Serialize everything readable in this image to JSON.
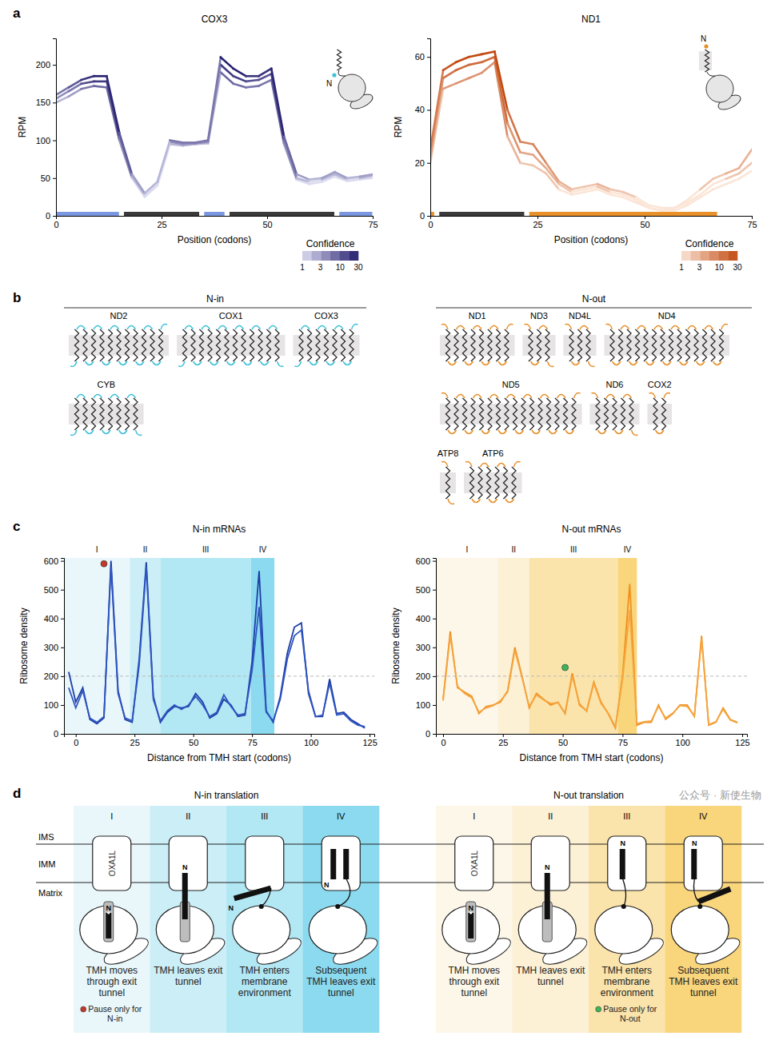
{
  "panel_labels": [
    "a",
    "b",
    "c",
    "d"
  ],
  "watermark": "公众号 · 新使生物",
  "chart_data": [
    {
      "type": "line",
      "title": "COX3",
      "x_label": "Position (codons)",
      "y_label": "RPM",
      "inset_label": "N",
      "x": [
        0,
        3,
        6,
        9,
        12,
        15,
        18,
        21,
        24,
        27,
        30,
        33,
        36,
        39,
        42,
        45,
        48,
        51,
        54,
        57,
        60,
        63,
        66,
        69,
        72,
        75
      ],
      "series": [
        {
          "values": [
            160,
            170,
            180,
            185,
            185,
            110,
            55,
            30,
            45,
            100,
            97,
            97,
            100,
            210,
            195,
            185,
            185,
            195,
            105,
            55,
            48,
            50,
            58,
            50,
            52,
            55
          ],
          "confidence": [
            6,
            10,
            20,
            30,
            25,
            10,
            3,
            2,
            2,
            6,
            6,
            6,
            6,
            30,
            28,
            20,
            20,
            25,
            8,
            3,
            2,
            3,
            3,
            2,
            3,
            3
          ]
        },
        {
          "values": [
            155,
            165,
            175,
            178,
            178,
            105,
            52,
            28,
            42,
            98,
            95,
            96,
            98,
            200,
            185,
            178,
            180,
            188,
            100,
            50,
            45,
            48,
            55,
            48,
            50,
            53
          ],
          "confidence": [
            4,
            6,
            12,
            18,
            15,
            6,
            2,
            1,
            1,
            4,
            4,
            4,
            4,
            18,
            16,
            12,
            12,
            15,
            5,
            2,
            1,
            2,
            2,
            1,
            2,
            2
          ]
        },
        {
          "values": [
            150,
            158,
            168,
            172,
            170,
            100,
            50,
            25,
            40,
            95,
            93,
            95,
            96,
            190,
            175,
            170,
            172,
            180,
            95,
            48,
            42,
            45,
            52,
            46,
            48,
            50
          ],
          "confidence": [
            2,
            3,
            6,
            8,
            7,
            3,
            1,
            1,
            1,
            2,
            2,
            2,
            2,
            8,
            7,
            6,
            6,
            7,
            3,
            1,
            1,
            1,
            1,
            1,
            1,
            1
          ]
        }
      ],
      "xlim": [
        0,
        75
      ],
      "xticks": [
        0,
        25,
        50,
        75
      ],
      "ylim": [
        0,
        235
      ],
      "yticks": [
        0,
        50,
        100,
        150,
        200
      ],
      "colorbar": {
        "label": "Confidence",
        "range": [
          1,
          30
        ],
        "ticks": [
          1,
          3,
          10,
          30
        ],
        "log": true,
        "colors": [
          "#dcdcf0",
          "#231d6e"
        ]
      },
      "segments": [
        {
          "start": 0,
          "end": 15,
          "color": "#7b97e0"
        },
        {
          "start": 16,
          "end": 34,
          "color": "#3a3a3a"
        },
        {
          "start": 35,
          "end": 40,
          "color": "#7b97e0"
        },
        {
          "start": 41,
          "end": 66,
          "color": "#3a3a3a"
        },
        {
          "start": 67,
          "end": 75,
          "color": "#7b97e0"
        }
      ]
    },
    {
      "type": "line",
      "title": "ND1",
      "x_label": "Position (codons)",
      "y_label": "RPM",
      "inset_label": "N",
      "x": [
        0,
        3,
        6,
        9,
        12,
        15,
        18,
        21,
        24,
        27,
        30,
        33,
        36,
        39,
        42,
        45,
        48,
        51,
        54,
        57,
        60,
        63,
        66,
        69,
        72,
        75
      ],
      "series": [
        {
          "values": [
            25,
            55,
            58,
            60,
            61,
            62,
            40,
            28,
            27,
            20,
            13,
            10,
            11,
            12,
            10,
            9,
            7,
            4,
            3,
            3,
            6,
            10,
            14,
            16,
            18,
            25
          ],
          "confidence": [
            10,
            25,
            30,
            30,
            28,
            30,
            12,
            8,
            8,
            5,
            3,
            2,
            2,
            3,
            2,
            2,
            1,
            1,
            1,
            1,
            1,
            2,
            2,
            3,
            3,
            5
          ]
        },
        {
          "values": [
            22,
            52,
            55,
            57,
            58,
            60,
            35,
            24,
            23,
            18,
            12,
            9,
            10,
            11,
            9,
            8,
            6,
            3,
            2,
            3,
            5,
            8,
            12,
            14,
            16,
            20
          ],
          "confidence": [
            5,
            12,
            15,
            15,
            14,
            15,
            6,
            4,
            4,
            3,
            2,
            1,
            1,
            2,
            1,
            1,
            1,
            1,
            1,
            1,
            1,
            1,
            1,
            2,
            2,
            3
          ]
        },
        {
          "values": [
            20,
            48,
            50,
            52,
            54,
            58,
            30,
            20,
            19,
            16,
            10,
            8,
            9,
            10,
            8,
            7,
            5,
            3,
            2,
            2,
            4,
            7,
            10,
            12,
            14,
            17
          ],
          "confidence": [
            2,
            5,
            6,
            6,
            6,
            7,
            3,
            2,
            2,
            2,
            1,
            1,
            1,
            1,
            1,
            1,
            1,
            1,
            1,
            1,
            1,
            1,
            1,
            1,
            1,
            2
          ]
        }
      ],
      "xlim": [
        0,
        75
      ],
      "xticks": [
        0,
        25,
        50,
        75
      ],
      "ylim": [
        0,
        67
      ],
      "yticks": [
        0,
        20,
        40,
        60
      ],
      "colorbar": {
        "label": "Confidence",
        "range": [
          1,
          30
        ],
        "ticks": [
          1,
          3,
          10,
          30
        ],
        "log": true,
        "colors": [
          "#fbe5d6",
          "#c24a12"
        ]
      },
      "segments": [
        {
          "start": 0,
          "end": 1,
          "color": "#e8902a"
        },
        {
          "start": 2,
          "end": 22,
          "color": "#3a3a3a"
        },
        {
          "start": 23,
          "end": 67,
          "color": "#e8902a"
        }
      ]
    },
    {
      "type": "line",
      "title": "N-in mRNAs",
      "x_label": "Distance from TMH start (codons)",
      "y_label": "Ribosome density",
      "x": [
        -3,
        0,
        3,
        6,
        9,
        12,
        15,
        18,
        21,
        24,
        27,
        30,
        33,
        36,
        39,
        42,
        45,
        48,
        51,
        54,
        57,
        60,
        63,
        66,
        69,
        72,
        75,
        78,
        81,
        84,
        87,
        90,
        93,
        96,
        99,
        102,
        105,
        108,
        111,
        114,
        117,
        120,
        123
      ],
      "series": [
        {
          "color": "#1d3ea6",
          "values": [
            215,
            110,
            160,
            50,
            35,
            55,
            600,
            150,
            50,
            40,
            260,
            595,
            130,
            40,
            75,
            95,
            90,
            95,
            140,
            110,
            55,
            70,
            120,
            100,
            60,
            65,
            250,
            565,
            80,
            40,
            130,
            280,
            370,
            385,
            140,
            60,
            60,
            190,
            70,
            75,
            50,
            35,
            20
          ]
        },
        {
          "color": "#2f55c0",
          "values": [
            160,
            90,
            150,
            55,
            40,
            60,
            580,
            140,
            55,
            45,
            240,
            580,
            120,
            45,
            80,
            100,
            85,
            100,
            130,
            100,
            60,
            75,
            135,
            95,
            65,
            70,
            220,
            440,
            75,
            45,
            120,
            260,
            340,
            360,
            150,
            60,
            65,
            175,
            65,
            70,
            45,
            30,
            25
          ]
        }
      ],
      "xlim": [
        -5,
        127
      ],
      "xticks": [
        0,
        25,
        50,
        75,
        100,
        125
      ],
      "ylim": [
        0,
        610
      ],
      "yticks": [
        0,
        100,
        200,
        300,
        400,
        500,
        600
      ],
      "reference_y": 200,
      "regions": [
        {
          "label": "I",
          "start": -5,
          "end": 23,
          "color": "#e9f7fb"
        },
        {
          "label": "II",
          "start": 23,
          "end": 36,
          "color": "#cbeef7"
        },
        {
          "label": "III",
          "start": 36,
          "end": 74.5,
          "color": "#b2e7f4"
        },
        {
          "label": "IV",
          "start": 74.5,
          "end": 84.5,
          "color": "#8bdaef"
        }
      ],
      "markers": [
        {
          "x": 12,
          "y": 590,
          "color": "#c0392b"
        }
      ]
    },
    {
      "type": "line",
      "title": "N-out mRNAs",
      "x_label": "Distance from TMH start (codons)",
      "y_label": "Ribosome density",
      "x": [
        0,
        3,
        6,
        9,
        12,
        15,
        18,
        21,
        24,
        27,
        30,
        33,
        36,
        39,
        42,
        45,
        48,
        51,
        54,
        57,
        60,
        63,
        66,
        69,
        72,
        75,
        78,
        81,
        84,
        87,
        90,
        93,
        96,
        99,
        102,
        105,
        108,
        111,
        114,
        117,
        120,
        123
      ],
      "series": [
        {
          "color": "#f0901e",
          "values": [
            120,
            355,
            160,
            145,
            130,
            70,
            95,
            100,
            110,
            150,
            300,
            200,
            90,
            140,
            120,
            100,
            110,
            70,
            210,
            100,
            80,
            180,
            110,
            70,
            20,
            200,
            520,
            30,
            40,
            40,
            100,
            50,
            70,
            100,
            100,
            60,
            340,
            30,
            40,
            90,
            50,
            40
          ]
        },
        {
          "color": "#f5a640",
          "values": [
            115,
            340,
            165,
            140,
            125,
            75,
            90,
            98,
            115,
            145,
            290,
            195,
            95,
            135,
            118,
            105,
            108,
            72,
            200,
            105,
            78,
            175,
            105,
            72,
            25,
            190,
            430,
            35,
            42,
            45,
            95,
            55,
            72,
            98,
            95,
            62,
            330,
            32,
            42,
            85,
            48,
            38
          ]
        }
      ],
      "xlim": [
        -3,
        127
      ],
      "xticks": [
        0,
        25,
        50,
        75,
        100,
        125
      ],
      "ylim": [
        0,
        610
      ],
      "yticks": [
        0,
        100,
        200,
        300,
        400,
        500,
        600
      ],
      "reference_y": 200,
      "regions": [
        {
          "label": "I",
          "start": -3,
          "end": 23,
          "color": "#fdf7e9"
        },
        {
          "label": "II",
          "start": 23,
          "end": 36,
          "color": "#fcf0d5"
        },
        {
          "label": "III",
          "start": 36,
          "end": 73,
          "color": "#fbe4ab"
        },
        {
          "label": "IV",
          "start": 73,
          "end": 81,
          "color": "#f9d57c"
        }
      ],
      "markers": [
        {
          "x": 51,
          "y": 230,
          "color": "#3cb55a"
        }
      ]
    }
  ],
  "topology": {
    "groups": [
      {
        "title": "N-in",
        "color": "#3fc1d9",
        "proteins": [
          {
            "name": "ND2",
            "tmh": 11
          },
          {
            "name": "COX1",
            "tmh": 12
          },
          {
            "name": "COX3",
            "tmh": 7
          },
          {
            "name": "CYB",
            "tmh": 8
          }
        ]
      },
      {
        "title": "N-out",
        "color": "#e8902a",
        "proteins": [
          {
            "name": "ND1",
            "tmh": 8
          },
          {
            "name": "ND3",
            "tmh": 3
          },
          {
            "name": "ND4L",
            "tmh": 3
          },
          {
            "name": "ND4",
            "tmh": 14
          },
          {
            "name": "ND5",
            "tmh": 16
          },
          {
            "name": "ND6",
            "tmh": 5
          },
          {
            "name": "COX2",
            "tmh": 2
          },
          {
            "name": "ATP8",
            "tmh": 1
          },
          {
            "name": "ATP6",
            "tmh": 6
          }
        ]
      }
    ]
  },
  "translation_diagram": {
    "layers": [
      "IMS",
      "IMM",
      "Matrix"
    ],
    "insertase": "OXA1L",
    "n_label": "N",
    "groups": [
      {
        "title": "N-in translation",
        "stages": [
          {
            "numeral": "I",
            "caption": "TMH moves through exit tunnel",
            "note": "Pause only for N-in",
            "note_color": "#c0392b",
            "color": "#e9f7fb"
          },
          {
            "numeral": "II",
            "caption": "TMH leaves exit tunnel",
            "color": "#cbeef7"
          },
          {
            "numeral": "III",
            "caption": "TMH enters membrane environment",
            "color": "#b2e7f4"
          },
          {
            "numeral": "IV",
            "caption": "Subsequent TMH leaves exit tunnel",
            "color": "#8bdaef"
          }
        ]
      },
      {
        "title": "N-out translation",
        "stages": [
          {
            "numeral": "I",
            "caption": "TMH moves through exit tunnel",
            "color": "#fdf7e9"
          },
          {
            "numeral": "II",
            "caption": "TMH leaves exit tunnel",
            "color": "#fcf0d5"
          },
          {
            "numeral": "III",
            "caption": "TMH enters membrane environment",
            "note": "Pause only for N-out",
            "note_color": "#3cb55a",
            "color": "#fbe4ab"
          },
          {
            "numeral": "IV",
            "caption": "Subsequent TMH leaves exit tunnel",
            "color": "#f9d57c"
          }
        ]
      }
    ]
  }
}
